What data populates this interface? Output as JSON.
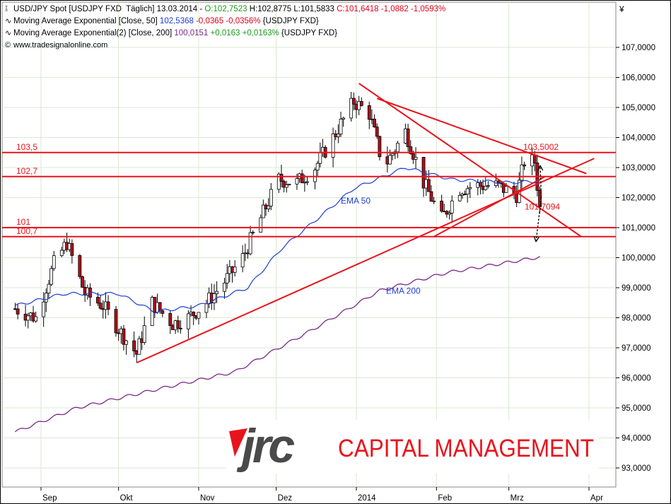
{
  "header": {
    "line1": {
      "icon": "candlestick-icon",
      "name": "USD/JPY Spot [USDJPY FXD  Täglich] 13.03.2014 - ",
      "o": "O:102,7523",
      "hl": " H:102,8775 L:101,5833",
      "c": " C:101,6418 -1,0882 -1,0593%"
    },
    "line2": {
      "icon": "line-icon",
      "name": "Moving Average Exponential [Close, 50] ",
      "value": "102,5368",
      "chg": " -0,0365 -0,0356%",
      "sym": " {USDJPY FXD}"
    },
    "line3": {
      "icon": "line-icon",
      "name": "Moving Average Exponential(2) [Close, 200] ",
      "value": "100,0151",
      "chg": " +0,0163 +0,0163%",
      "sym": " {USDJPY FXD}"
    },
    "line4": {
      "icon": "copyright-icon",
      "text": "www.tradesignalonline.com"
    }
  },
  "logo": {
    "mark": "jrc",
    "text": "CAPITAL MANAGEMENT"
  },
  "colors": {
    "up": "#ffffff",
    "down": "#b0101a",
    "ema50": "#1f3fd0",
    "ema200": "#7a2a8a",
    "lines": "#e8141c",
    "grid": "#d9e8d0"
  },
  "chart_data": {
    "type": "candlestick",
    "currency_symbol": "¥",
    "y_ticks": [
      93,
      94,
      95,
      96,
      97,
      98,
      99,
      100,
      101,
      102,
      103,
      104,
      105,
      106,
      107
    ],
    "y_tick_labels": [
      "93,0000",
      "94,0000",
      "95,0000",
      "96,0000",
      "97,0000",
      "98,0000",
      "99,0000",
      "100,0000",
      "101,0000",
      "102,0000",
      "103,0000",
      "104,0000",
      "105,0000",
      "106,0000",
      "107,0000"
    ],
    "ylim": [
      92.4,
      108.4
    ],
    "x_ticks": [
      "Sep",
      "Okt",
      "Nov",
      "Dez",
      "2014",
      "Feb",
      "Mrz",
      "Apr"
    ],
    "horizontal_levels": [
      {
        "label": "103,5",
        "value": 103.5
      },
      {
        "label": "102,7",
        "value": 102.7
      },
      {
        "label": "101",
        "value": 101.0
      },
      {
        "label": "100,7",
        "value": 100.7
      }
    ],
    "annotations": [
      {
        "text": "103,5002",
        "value": 103.5
      },
      {
        "text": "101,7094",
        "value": 101.7
      },
      {
        "text": "EMA 50"
      },
      {
        "text": "EMA 200"
      }
    ],
    "trendlines": [
      {
        "name": "support",
        "from": [
          "2013-10-08",
          96.5
        ],
        "to": [
          "2014-04-03",
          103.3
        ]
      },
      {
        "name": "resistance-1",
        "from": [
          "2014-01-02",
          105.8
        ],
        "to": [
          "2014-03-29",
          100.7
        ]
      },
      {
        "name": "resistance-2",
        "from": [
          "2014-01-09",
          105.3
        ],
        "to": [
          "2014-03-31",
          102.8
        ]
      },
      {
        "name": "triangle-lower",
        "from": [
          "2014-01-31",
          100.7
        ],
        "to": [
          "2014-03-15",
          102.7
        ]
      }
    ],
    "close_anchors": [
      [
        "2013-08-22",
        98.3
      ],
      [
        "2013-08-30",
        98.0
      ],
      [
        "2013-09-06",
        99.8
      ],
      [
        "2013-09-11",
        100.5
      ],
      [
        "2013-09-18",
        98.8
      ],
      [
        "2013-09-25",
        98.4
      ],
      [
        "2013-10-02",
        97.5
      ],
      [
        "2013-10-08",
        96.8
      ],
      [
        "2013-10-14",
        98.5
      ],
      [
        "2013-10-22",
        97.8
      ],
      [
        "2013-10-28",
        98.0
      ],
      [
        "2013-11-04",
        98.5
      ],
      [
        "2013-11-11",
        99.2
      ],
      [
        "2013-11-18",
        100.0
      ],
      [
        "2013-11-26",
        101.5
      ],
      [
        "2013-12-02",
        102.6
      ],
      [
        "2013-12-09",
        102.5
      ],
      [
        "2013-12-16",
        103.0
      ],
      [
        "2013-12-23",
        104.0
      ],
      [
        "2013-12-31",
        105.2
      ],
      [
        "2014-01-06",
        104.8
      ],
      [
        "2014-01-10",
        103.5
      ],
      [
        "2014-01-13",
        103.2
      ],
      [
        "2014-01-20",
        104.2
      ],
      [
        "2014-01-23",
        103.5
      ],
      [
        "2014-01-27",
        102.5
      ],
      [
        "2014-02-03",
        101.3
      ],
      [
        "2014-02-10",
        102.3
      ],
      [
        "2014-02-17",
        102.4
      ],
      [
        "2014-02-24",
        102.4
      ],
      [
        "2014-03-04",
        102.1
      ],
      [
        "2014-03-07",
        103.2
      ],
      [
        "2014-03-11",
        103.2
      ],
      [
        "2014-03-13",
        101.64
      ]
    ],
    "ema50_anchors": [
      [
        "2013-08-22",
        98.4
      ],
      [
        "2013-09-10",
        98.8
      ],
      [
        "2013-10-01",
        98.8
      ],
      [
        "2013-10-15",
        98.2
      ],
      [
        "2013-11-01",
        98.4
      ],
      [
        "2013-11-20",
        99.0
      ],
      [
        "2013-12-03",
        100.3
      ],
      [
        "2013-12-31",
        102.3
      ],
      [
        "2014-01-20",
        103.0
      ],
      [
        "2014-02-07",
        102.6
      ],
      [
        "2014-03-01",
        102.5
      ],
      [
        "2014-03-13",
        102.54
      ]
    ],
    "ema200_anchors": [
      [
        "2013-08-22",
        94.2
      ],
      [
        "2013-09-15",
        95.0
      ],
      [
        "2013-10-15",
        95.6
      ],
      [
        "2013-11-15",
        96.2
      ],
      [
        "2013-12-15",
        97.6
      ],
      [
        "2014-01-10",
        98.9
      ],
      [
        "2014-02-05",
        99.5
      ],
      [
        "2014-03-13",
        100.02
      ]
    ]
  }
}
